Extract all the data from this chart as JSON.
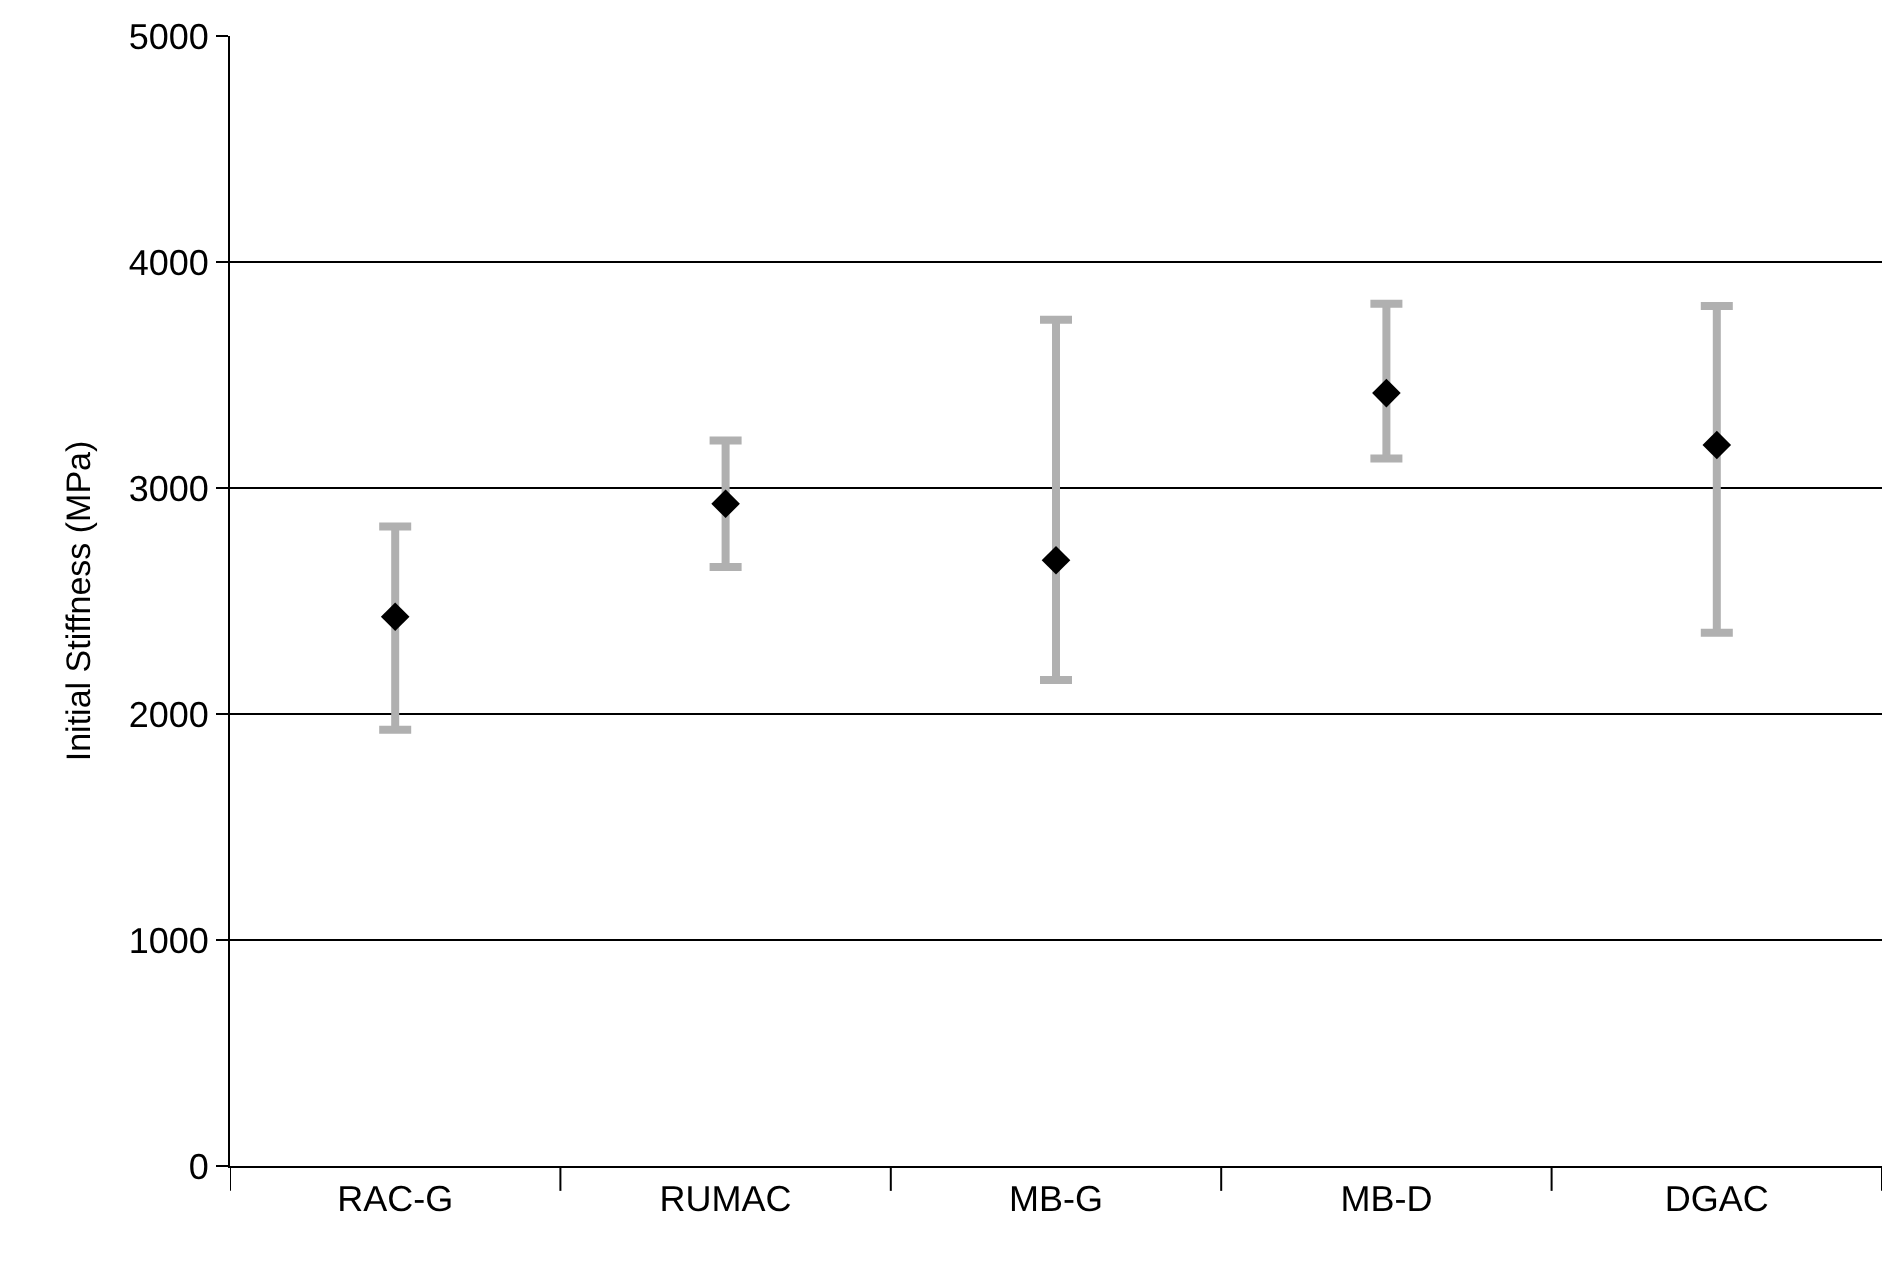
{
  "chart_data": {
    "type": "scatter",
    "ylabel": "Initial Stiffness (MPa)",
    "categories": [
      "RAC-G",
      "RUMAC",
      "MB-G",
      "MB-D",
      "DGAC"
    ],
    "series": [
      {
        "color": "#000000",
        "values": [
          2430,
          2930,
          2680,
          3420,
          3190
        ],
        "errors": [
          [
            1930,
            2830
          ],
          [
            2650,
            3210
          ],
          [
            2150,
            3745
          ],
          [
            3130,
            3815
          ],
          [
            2360,
            3805
          ]
        ]
      }
    ],
    "ylim": [
      0,
      5000
    ],
    "yticks": [
      0,
      1000,
      2000,
      3000,
      4000,
      5000
    ],
    "grid": "y",
    "marker": "diamond"
  }
}
